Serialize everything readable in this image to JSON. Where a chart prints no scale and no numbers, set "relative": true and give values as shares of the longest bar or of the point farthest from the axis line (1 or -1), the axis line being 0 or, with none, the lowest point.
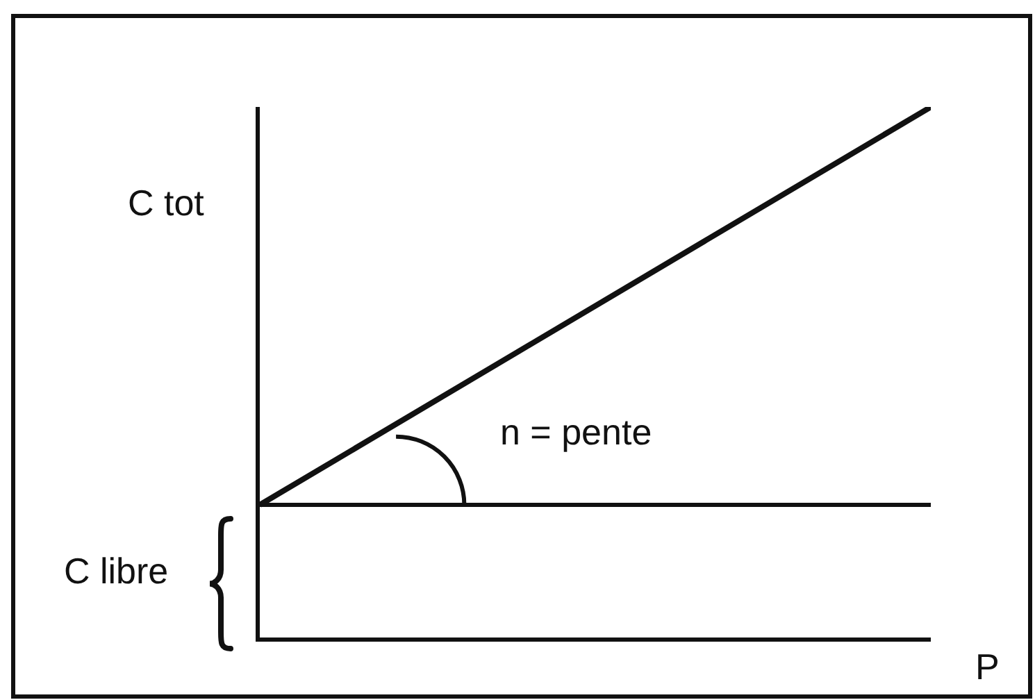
{
  "chart_data": {
    "type": "line",
    "relative": true,
    "ylabel": "C tot",
    "xlabel": "P",
    "categories": [
      null,
      null
    ],
    "series": [
      {
        "color": "#111111",
        "values": [
          0.25,
          1
        ]
      }
    ],
    "ref_lines": [
      {
        "axis": "y",
        "value": 0.25,
        "label": "C libre",
        "color": "#111111"
      }
    ],
    "annotations": [
      "n = pente"
    ]
  }
}
